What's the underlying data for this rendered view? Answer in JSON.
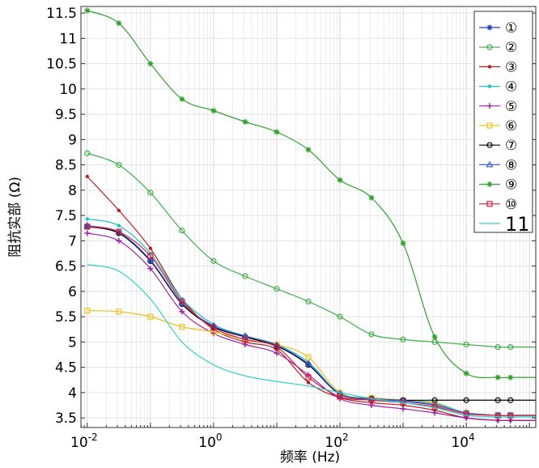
{
  "chart_data": {
    "type": "line",
    "title": "",
    "xlabel": "频率 (Hz)",
    "ylabel": "阻抗实部 (Ω)",
    "xscale": "log",
    "xlim_log10": [
      -2.1,
      5.1
    ],
    "ylim": [
      3.31,
      11.63
    ],
    "grid": true,
    "legend_placement": "top-right",
    "x_ticks": [
      {
        "exp": -2,
        "label": "10",
        "sup": "-2"
      },
      {
        "exp": 0,
        "label": "10",
        "sup": "0"
      },
      {
        "exp": 2,
        "label": "10",
        "sup": "2"
      },
      {
        "exp": 4,
        "label": "10",
        "sup": "4"
      }
    ],
    "y_ticks": [
      "3.5",
      "4",
      "4.5",
      "5",
      "5.5",
      "6",
      "6.5",
      "7",
      "7.5",
      "8",
      "8.5",
      "9",
      "9.5",
      "10",
      "10.5",
      "11",
      "11.5"
    ],
    "x_log10": [
      -2,
      -1.5,
      -1,
      -0.5,
      0,
      0.5,
      1,
      1.5,
      2,
      2.5,
      3,
      3.5,
      4,
      4.5,
      4.7
    ],
    "series": [
      {
        "name": "①",
        "color": "#1f3fbf",
        "marker": "star",
        "values": [
          7.28,
          7.15,
          6.6,
          5.75,
          5.3,
          5.1,
          4.92,
          4.55,
          3.97,
          3.87,
          3.83,
          3.75,
          3.6,
          3.55,
          3.55
        ]
      },
      {
        "name": "②",
        "color": "#3cae48",
        "marker": "circle",
        "values": [
          8.73,
          8.5,
          7.95,
          7.2,
          6.6,
          6.3,
          6.05,
          5.8,
          5.5,
          5.15,
          5.05,
          5.0,
          4.95,
          4.9,
          4.9
        ]
      },
      {
        "name": "③",
        "color": "#b22222",
        "marker": "dot",
        "values": [
          8.27,
          7.6,
          6.85,
          5.85,
          5.25,
          5.0,
          4.85,
          4.2,
          3.9,
          3.8,
          3.75,
          3.65,
          3.5,
          3.45,
          3.45
        ]
      },
      {
        "name": "④",
        "color": "#1fc0c0",
        "marker": "dot",
        "values": [
          7.43,
          7.3,
          6.75,
          5.85,
          5.35,
          5.12,
          4.95,
          4.6,
          3.98,
          3.9,
          3.85,
          3.8,
          3.6,
          3.55,
          3.55
        ]
      },
      {
        "name": "⑤",
        "color": "#a020a0",
        "marker": "plus",
        "values": [
          7.15,
          7.0,
          6.45,
          5.6,
          5.17,
          4.95,
          4.78,
          4.35,
          3.88,
          3.75,
          3.68,
          3.6,
          3.5,
          3.45,
          3.45
        ]
      },
      {
        "name": "⑥",
        "color": "#f0c020",
        "marker": "square",
        "values": [
          5.62,
          5.6,
          5.5,
          5.3,
          5.2,
          5.05,
          4.95,
          4.7,
          4.0,
          3.9,
          3.85,
          3.78,
          3.6,
          3.55,
          3.55
        ]
      },
      {
        "name": "⑦",
        "color": "#000000",
        "marker": "circle",
        "values": [
          7.28,
          7.15,
          6.6,
          5.75,
          5.3,
          5.1,
          4.92,
          4.55,
          3.97,
          3.88,
          3.85,
          3.85,
          3.85,
          3.85,
          3.85
        ]
      },
      {
        "name": "⑧",
        "color": "#4060d0",
        "marker": "triangle",
        "values": [
          7.3,
          7.17,
          6.62,
          5.77,
          5.32,
          5.12,
          4.94,
          4.57,
          3.98,
          3.88,
          3.84,
          3.76,
          3.6,
          3.55,
          3.55
        ]
      },
      {
        "name": "⑨",
        "color": "#30a030",
        "marker": "star",
        "values": [
          11.55,
          11.3,
          10.5,
          9.8,
          9.57,
          9.35,
          9.15,
          8.8,
          8.2,
          7.85,
          6.95,
          5.1,
          4.38,
          4.3,
          4.3
        ]
      },
      {
        "name": "⑩",
        "color": "#d02040",
        "marker": "square",
        "values": [
          7.28,
          7.18,
          6.7,
          5.8,
          5.28,
          5.05,
          4.9,
          4.3,
          3.92,
          3.85,
          3.8,
          3.72,
          3.58,
          3.55,
          3.55
        ]
      },
      {
        "name": "11",
        "color": "#30d0d0",
        "marker": "none",
        "values": [
          6.53,
          6.4,
          5.85,
          5.0,
          4.55,
          4.33,
          4.22,
          4.13,
          4.0,
          3.88,
          3.8,
          3.7,
          3.55,
          3.52,
          3.52
        ]
      }
    ]
  }
}
